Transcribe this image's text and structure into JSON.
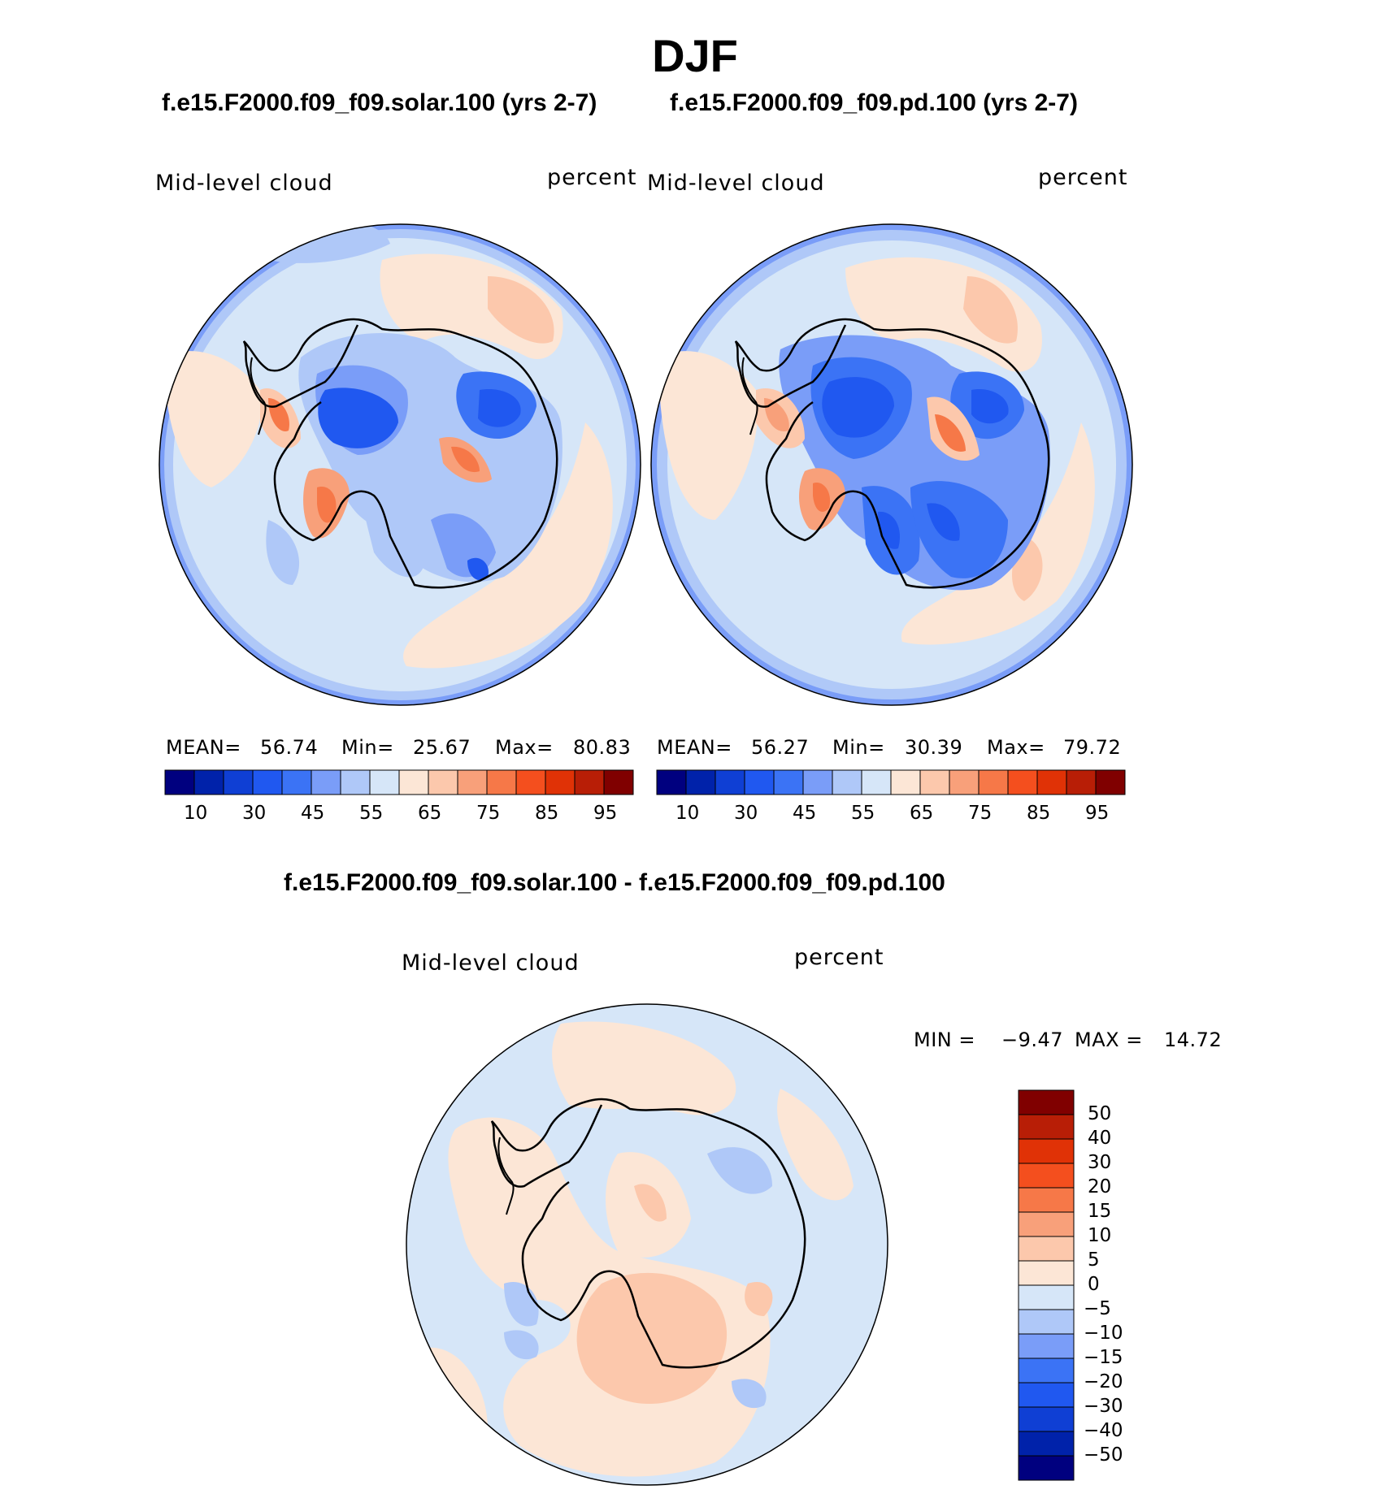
{
  "season": "DJF",
  "panels": [
    {
      "case_title": "f.e15.F2000.f09_f09.solar.100 (yrs 2-7)",
      "variable": "Mid-level cloud",
      "units": "percent",
      "stats": {
        "mean_label": "MEAN=",
        "mean": "56.74",
        "min_label": "Min=",
        "min": "25.67",
        "max_label": "Max=",
        "max": "80.83"
      }
    },
    {
      "case_title": "f.e15.F2000.f09_f09.pd.100 (yrs 2-7)",
      "variable": "Mid-level cloud",
      "units": "percent",
      "stats": {
        "mean_label": "MEAN=",
        "mean": "56.27",
        "min_label": "Min=",
        "min": "30.39",
        "max_label": "Max=",
        "max": "79.72"
      }
    }
  ],
  "diff": {
    "title": "f.e15.F2000.f09_f09.solar.100 - f.e15.F2000.f09_f09.pd.100",
    "variable": "Mid-level cloud",
    "units": "percent",
    "min_label": "MIN =",
    "min": "−9.47",
    "max_label": "MAX =",
    "max": "14.72"
  },
  "chart_data": [
    {
      "type": "heatmap",
      "projection": "south-polar-stereographic",
      "title": "f.e15.F2000.f09_f09.solar.100 (yrs 2-7)",
      "variable": "Mid-level cloud",
      "units": "percent",
      "mean": 56.74,
      "min": 25.67,
      "max": 80.83,
      "colorbar_levels": [
        5,
        10,
        20,
        30,
        40,
        45,
        50,
        55,
        60,
        65,
        70,
        75,
        80,
        85,
        90,
        95
      ],
      "colorbar_tick_labels": [
        "10",
        "30",
        "45",
        "55",
        "65",
        "75",
        "85",
        "95"
      ]
    },
    {
      "type": "heatmap",
      "projection": "south-polar-stereographic",
      "title": "f.e15.F2000.f09_f09.pd.100 (yrs 2-7)",
      "variable": "Mid-level cloud",
      "units": "percent",
      "mean": 56.27,
      "min": 30.39,
      "max": 79.72,
      "colorbar_levels": [
        5,
        10,
        20,
        30,
        40,
        45,
        50,
        55,
        60,
        65,
        70,
        75,
        80,
        85,
        90,
        95
      ],
      "colorbar_tick_labels": [
        "10",
        "30",
        "45",
        "55",
        "65",
        "75",
        "85",
        "95"
      ]
    },
    {
      "type": "heatmap",
      "projection": "south-polar-stereographic",
      "title": "f.e15.F2000.f09_f09.solar.100 - f.e15.F2000.f09_f09.pd.100",
      "variable": "Mid-level cloud",
      "units": "percent",
      "min": -9.47,
      "max": 14.72,
      "colorbar_levels": [
        -50,
        -40,
        -30,
        -20,
        -15,
        -10,
        -5,
        0,
        5,
        10,
        15,
        20,
        30,
        40,
        50
      ],
      "colorbar_tick_labels": [
        "50",
        "40",
        "30",
        "20",
        "15",
        "10",
        "5",
        "0",
        "−5",
        "−10",
        "−15",
        "−20",
        "−30",
        "−40",
        "−50"
      ]
    }
  ],
  "colors": {
    "scale": [
      "#00007f",
      "#0022aa",
      "#0f3fd4",
      "#2058f0",
      "#3b73f5",
      "#7a9df8",
      "#afc8f8",
      "#d6e6f8",
      "#fce6d6",
      "#fcc8ac",
      "#f8a07a",
      "#f67848",
      "#f44f1e",
      "#e03206",
      "#b81e06",
      "#800000"
    ],
    "diff_scale": [
      "#800000",
      "#b81e06",
      "#e03206",
      "#f44f1e",
      "#f67848",
      "#f8a07a",
      "#fcc8ac",
      "#fce6d6",
      "#d6e6f8",
      "#afc8f8",
      "#7a9df8",
      "#3b73f5",
      "#2058f0",
      "#0f3fd4",
      "#0022aa",
      "#00007f"
    ],
    "coast": "#000000"
  }
}
